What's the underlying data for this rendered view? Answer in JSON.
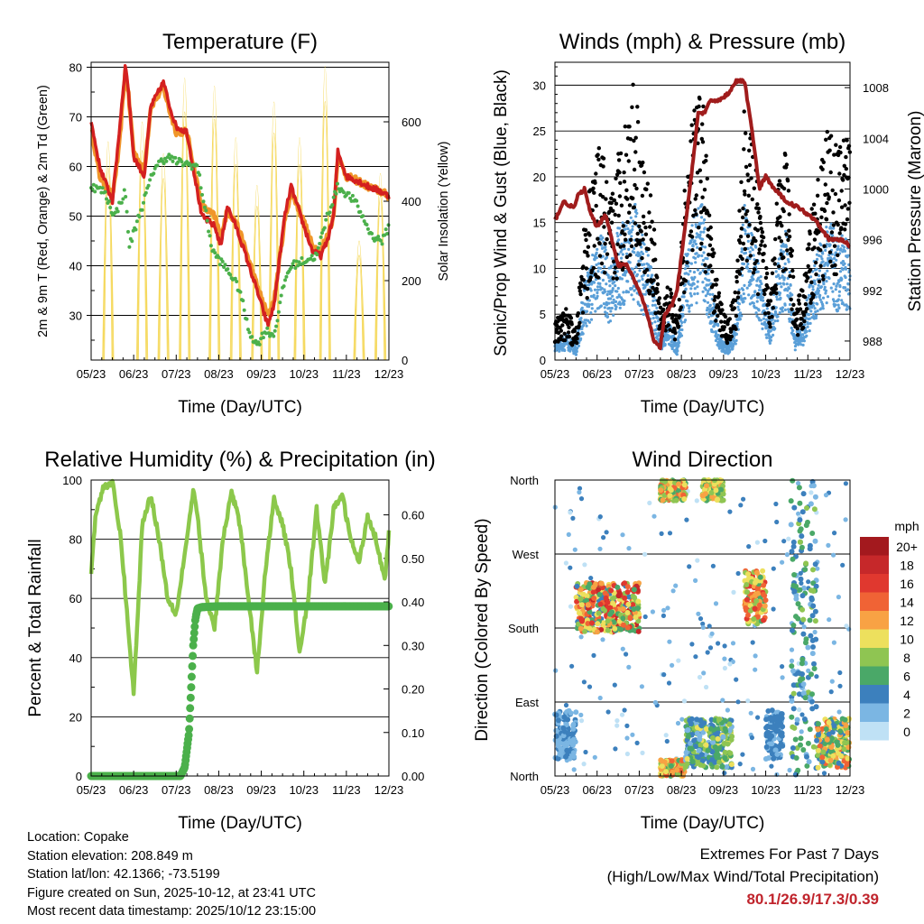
{
  "colors": {
    "temp2m": "#d42020",
    "temp9m": "#f0962a",
    "dewpoint": "#4bb04b",
    "solar": "#f5d85a",
    "wind": "#5a9fd8",
    "gust": "#000000",
    "pressure": "#a01c1c",
    "rh": "#8cc84b",
    "precip": "#4bb04b",
    "extremes": "#c0242c"
  },
  "chart_data": [
    {
      "id": "temperature",
      "type": "line",
      "title": "Temperature (F)",
      "xlabel": "Time (Day/UTC)",
      "ylabel": "2m & 9m T (Red, Orange) & 2m Td (Green)",
      "y2label": "Solar Insolation (Yellow)",
      "x_ticks": [
        "05/23",
        "06/23",
        "07/23",
        "08/23",
        "09/23",
        "10/23",
        "11/23",
        "12/23"
      ],
      "xlim": [
        0,
        7
      ],
      "ylim": [
        21,
        81
      ],
      "y_ticks": [
        30,
        40,
        50,
        60,
        70,
        80
      ],
      "y2lim": [
        0,
        750
      ],
      "y2_ticks": [
        0,
        200,
        400,
        600
      ],
      "series": [
        {
          "name": "2m T",
          "color_key": "temp2m",
          "x": [
            0,
            0.2,
            0.5,
            0.65,
            0.8,
            0.85,
            1.0,
            1.25,
            1.4,
            1.7,
            1.85,
            2.0,
            2.25,
            2.6,
            2.9,
            3.05,
            3.2,
            3.4,
            3.6,
            3.9,
            4.15,
            4.3,
            4.55,
            4.7,
            5.0,
            5.2,
            5.4,
            5.55,
            5.7,
            5.8,
            6.0,
            6.3,
            6.5,
            6.8,
            7.0
          ],
          "values": [
            69,
            60,
            53,
            66,
            80,
            78,
            62,
            58,
            72,
            77,
            72,
            68,
            67,
            50,
            48,
            44,
            52,
            48,
            43,
            35,
            28,
            32,
            50,
            56,
            48,
            43,
            42,
            45,
            50,
            63,
            58,
            57,
            56,
            55,
            54
          ]
        },
        {
          "name": "9m T",
          "color_key": "temp9m",
          "x": [
            0,
            0.2,
            0.5,
            0.65,
            0.8,
            0.85,
            1.0,
            1.25,
            1.4,
            1.7,
            1.85,
            2.0,
            2.25,
            2.6,
            2.9,
            3.05,
            3.2,
            3.4,
            3.6,
            3.9,
            4.15,
            4.3,
            4.55,
            4.7,
            5.0,
            5.2,
            5.4,
            5.55,
            5.7,
            5.8,
            6.0,
            6.3,
            6.5,
            6.8,
            7.0
          ],
          "values": [
            68,
            58,
            54,
            63,
            79,
            77,
            63,
            59,
            72,
            76,
            71,
            67,
            67,
            52,
            50,
            46,
            51,
            49,
            44,
            36,
            30,
            33,
            49,
            55,
            49,
            44,
            43,
            46,
            50,
            62,
            58,
            57,
            56,
            55,
            54
          ]
        },
        {
          "name": "2m Td",
          "color_key": "dewpoint",
          "x": [
            0,
            0.3,
            0.55,
            0.8,
            0.9,
            1.2,
            1.5,
            1.8,
            2.0,
            2.5,
            2.75,
            2.85,
            3.3,
            3.5,
            3.7,
            3.9,
            4.1,
            4.3,
            4.55,
            4.7,
            5.0,
            5.3,
            5.55,
            5.8,
            6.2,
            6.6,
            6.85,
            7.0
          ],
          "values": [
            56,
            55,
            50,
            55,
            44,
            52,
            60,
            62,
            61,
            60,
            48,
            43,
            38,
            35,
            27,
            24,
            27,
            26,
            37,
            40,
            41,
            42,
            50,
            56,
            53,
            46,
            45,
            48
          ]
        },
        {
          "name": "Solar Insolation",
          "axis": "y2",
          "color_key": "solar",
          "peaks_x": [
            0.4,
            1.2,
            1.7,
            2.2,
            2.9,
            3.4,
            3.9,
            4.3,
            4.9,
            5.5,
            6.3,
            6.8
          ],
          "peaks": [
            550,
            600,
            520,
            710,
            690,
            560,
            440,
            650,
            560,
            740,
            300,
            470
          ]
        }
      ]
    },
    {
      "id": "winds",
      "type": "scatter",
      "title": "Winds (mph) & Pressure (mb)",
      "xlabel": "Time (Day/UTC)",
      "ylabel": "Sonic/Prop Wind & Gust (Blue, Black)",
      "y2label": "Station Pressure (Maroon)",
      "x_ticks": [
        "05/23",
        "06/23",
        "07/23",
        "08/23",
        "09/23",
        "10/23",
        "11/23",
        "12/23"
      ],
      "xlim": [
        0,
        7
      ],
      "ylim": [
        0,
        32.5
      ],
      "y_ticks": [
        0,
        5,
        10,
        15,
        20,
        25,
        30
      ],
      "y2lim": [
        986.5,
        1010
      ],
      "y2_ticks": [
        988,
        992,
        996,
        1000,
        1004,
        1008
      ],
      "series": [
        {
          "name": "Wind",
          "color_key": "wind",
          "x": [
            0,
            0.3,
            0.5,
            0.7,
            0.9,
            1.1,
            1.3,
            1.5,
            1.7,
            1.9,
            2.1,
            2.3,
            2.5,
            2.7,
            2.9,
            3.1,
            3.3,
            3.5,
            3.7,
            3.9,
            4.1,
            4.3,
            4.5,
            4.7,
            4.9,
            5.1,
            5.3,
            5.5,
            5.7,
            5.9,
            6.1,
            6.3,
            6.5,
            6.7,
            6.9,
            7.0
          ],
          "values": [
            1.5,
            2,
            1,
            6,
            8,
            10,
            7,
            10,
            11,
            12,
            9,
            7,
            2,
            3,
            1,
            8,
            11,
            12,
            6,
            2,
            1,
            3,
            12,
            10,
            6,
            3,
            8,
            10,
            2,
            3,
            7,
            9,
            11,
            9,
            10,
            9
          ]
        },
        {
          "name": "Gust",
          "color_key": "gust",
          "x": [
            0,
            0.3,
            0.5,
            0.7,
            0.9,
            1.1,
            1.3,
            1.5,
            1.7,
            1.9,
            2.1,
            2.3,
            2.5,
            2.7,
            2.9,
            3.1,
            3.3,
            3.5,
            3.7,
            3.9,
            4.1,
            4.3,
            4.5,
            4.7,
            4.9,
            5.1,
            5.3,
            5.5,
            5.7,
            5.9,
            6.1,
            6.3,
            6.5,
            6.7,
            6.9,
            7.0
          ],
          "values": [
            3,
            4,
            2,
            11,
            14,
            17,
            12,
            16,
            19,
            22,
            15,
            12,
            4,
            6,
            3,
            15,
            19,
            21,
            10,
            5,
            3,
            6,
            20,
            16,
            11,
            6,
            14,
            16,
            4,
            6,
            12,
            15,
            18,
            16,
            19,
            18
          ]
        },
        {
          "name": "Station Pressure",
          "axis": "y2",
          "color_key": "pressure",
          "x": [
            0,
            0.2,
            0.45,
            0.55,
            0.7,
            0.85,
            1.0,
            1.2,
            1.35,
            1.5,
            1.7,
            2.0,
            2.2,
            2.35,
            2.5,
            2.6,
            2.8,
            2.9,
            3.2,
            3.4,
            3.55,
            3.7,
            3.9,
            4.1,
            4.3,
            4.5,
            4.7,
            4.85,
            5.0,
            5.2,
            5.5,
            5.8,
            6.0,
            6.2,
            6.5,
            6.8,
            7.0
          ],
          "values": [
            997.5,
            999,
            998.5,
            999.5,
            1000,
            998,
            997,
            998,
            996,
            994,
            994,
            992,
            990,
            988,
            987.5,
            990,
            991,
            992,
            1000,
            1006,
            1006,
            1007,
            1007,
            1007.5,
            1008.5,
            1008.5,
            1004,
            1000,
            1001,
            1000,
            999,
            998.5,
            998,
            997.5,
            996,
            996,
            995.5
          ]
        }
      ]
    },
    {
      "id": "humidity",
      "type": "line",
      "title": "Relative Humidity (%) & Precipitation (in)",
      "xlabel": "Time (Day/UTC)",
      "ylabel": "Percent & Total Rainfall",
      "x_ticks": [
        "05/23",
        "06/23",
        "07/23",
        "08/23",
        "09/23",
        "10/23",
        "11/23",
        "12/23"
      ],
      "xlim": [
        0,
        7
      ],
      "ylim": [
        0,
        100
      ],
      "y_ticks": [
        0,
        20,
        40,
        60,
        80,
        100
      ],
      "y2lim": [
        0,
        0.68
      ],
      "y2_ticks": [
        "0.00",
        "0.10",
        "0.20",
        "0.30",
        "0.40",
        "0.50",
        "0.60"
      ],
      "series": [
        {
          "name": "RH",
          "color_key": "rh",
          "x": [
            0,
            0.1,
            0.3,
            0.5,
            0.7,
            0.9,
            1.0,
            1.1,
            1.2,
            1.4,
            1.6,
            1.8,
            2.0,
            2.2,
            2.4,
            2.5,
            2.7,
            2.9,
            3.1,
            3.3,
            3.5,
            3.7,
            3.9,
            4.1,
            4.3,
            4.5,
            4.7,
            4.9,
            5.1,
            5.3,
            5.5,
            5.7,
            5.9,
            6.1,
            6.3,
            6.5,
            6.7,
            6.9,
            7.0
          ],
          "values": [
            68,
            88,
            98,
            99,
            80,
            45,
            28,
            55,
            85,
            95,
            80,
            60,
            55,
            75,
            96,
            88,
            60,
            50,
            80,
            96,
            85,
            60,
            35,
            70,
            94,
            85,
            70,
            42,
            60,
            90,
            65,
            90,
            95,
            80,
            72,
            88,
            80,
            66,
            82
          ]
        },
        {
          "name": "Total Rainfall",
          "axis": "y2",
          "color_key": "precip",
          "x": [
            0,
            2.1,
            2.2,
            2.3,
            2.35,
            2.4,
            2.45,
            2.5,
            2.6,
            3.0,
            4.0,
            5.0,
            6.0,
            7.0
          ],
          "values": [
            0,
            0,
            0.02,
            0.1,
            0.2,
            0.3,
            0.36,
            0.385,
            0.388,
            0.39,
            0.39,
            0.39,
            0.39,
            0.39
          ]
        }
      ]
    },
    {
      "id": "winddir",
      "type": "scatter",
      "title": "Wind Direction",
      "xlabel": "Time (Day/UTC)",
      "ylabel": "Direction (Colored By Speed)",
      "x_ticks": [
        "05/23",
        "06/23",
        "07/23",
        "08/23",
        "09/23",
        "10/23",
        "11/23",
        "12/23"
      ],
      "xlim": [
        0,
        7
      ],
      "ylim": [
        0,
        360
      ],
      "y_ticks": [
        "North",
        "East",
        "South",
        "West",
        "North"
      ],
      "legend": {
        "title": "mph",
        "labels": [
          "20+",
          "18",
          "16",
          "14",
          "12",
          "10",
          "8",
          "6",
          "4",
          "2",
          "0"
        ],
        "colors": [
          "#a3191e",
          "#c6282a",
          "#e0382f",
          "#f06335",
          "#f8a244",
          "#ede05d",
          "#8fc552",
          "#4aa868",
          "#3c80bd",
          "#7bb6e3",
          "#bfe1f5"
        ]
      },
      "clusters": [
        {
          "x": [
            0,
            0.5
          ],
          "dir": [
            20,
            80
          ],
          "speed": [
            1,
            4
          ]
        },
        {
          "x": [
            0.5,
            2.0
          ],
          "dir": [
            175,
            235
          ],
          "speed": [
            4,
            18
          ]
        },
        {
          "x": [
            2.5,
            3.1
          ],
          "dir": [
            0,
            20
          ],
          "speed": [
            6,
            14
          ]
        },
        {
          "x": [
            2.5,
            3.1
          ],
          "dir": [
            335,
            360
          ],
          "speed": [
            6,
            14
          ]
        },
        {
          "x": [
            3.5,
            4.0
          ],
          "dir": [
            335,
            360
          ],
          "speed": [
            6,
            12
          ]
        },
        {
          "x": [
            3.1,
            4.2
          ],
          "dir": [
            10,
            70
          ],
          "speed": [
            2,
            10
          ]
        },
        {
          "x": [
            4.5,
            5.0
          ],
          "dir": [
            185,
            250
          ],
          "speed": [
            6,
            16
          ]
        },
        {
          "x": [
            5.0,
            5.4
          ],
          "dir": [
            20,
            80
          ],
          "speed": [
            2,
            5
          ]
        },
        {
          "x": [
            5.6,
            6.2
          ],
          "dir": [
            0,
            360
          ],
          "speed": [
            2,
            8
          ]
        },
        {
          "x": [
            6.2,
            7.0
          ],
          "dir": [
            10,
            70
          ],
          "speed": [
            4,
            14
          ]
        }
      ]
    }
  ],
  "info": {
    "location": "Location: Copake",
    "elevation": "Station elevation: 208.849 m",
    "latlon": "Station lat/lon: 42.1366; -73.5199",
    "created": "Figure created on Sun, 2025-10-12, at 23:41 UTC",
    "timestamp": "Most recent data timestamp: 2025/10/12 23:15:00"
  },
  "extremes": {
    "line1": "Extremes For Past 7 Days",
    "line2": "(High/Low/Max Wind/Total Precipitation)",
    "values": "80.1/26.9/17.3/0.39"
  }
}
